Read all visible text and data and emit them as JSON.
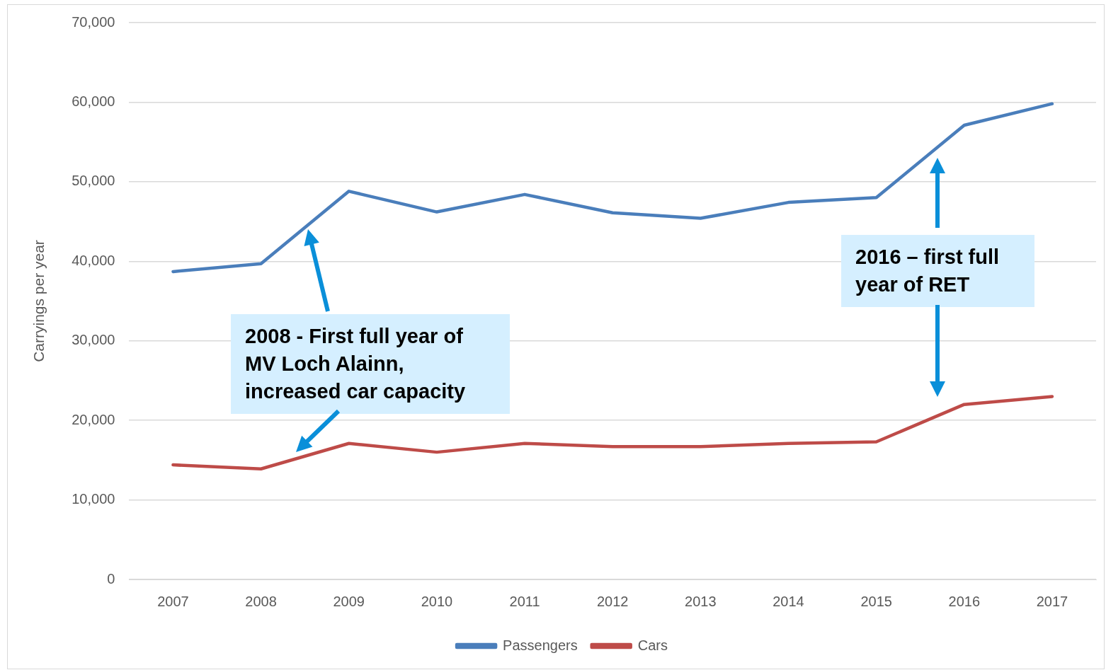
{
  "chart_data": {
    "type": "line",
    "ylabel": "Carryings per year",
    "categories": [
      "2007",
      "2008",
      "2009",
      "2010",
      "2011",
      "2012",
      "2013",
      "2014",
      "2015",
      "2016",
      "2017"
    ],
    "series": [
      {
        "name": "Passengers",
        "color": "#4a7ebb",
        "values": [
          38700,
          39700,
          48800,
          46200,
          48400,
          46100,
          45400,
          47400,
          48000,
          57100,
          59800
        ]
      },
      {
        "name": "Cars",
        "color": "#be4b48",
        "values": [
          14400,
          13900,
          17100,
          16000,
          17100,
          16700,
          16700,
          17100,
          17300,
          22000,
          23000
        ]
      }
    ],
    "ylim": [
      0,
      70000
    ],
    "yticks": [
      0,
      {
        "value": 10000,
        "label": "10,000"
      },
      {
        "value": 20000,
        "label": "20,000"
      },
      {
        "value": 30000,
        "label": "30,000"
      },
      {
        "value": 40000,
        "label": "40,000"
      },
      {
        "value": 50000,
        "label": "50,000"
      },
      {
        "value": 60000,
        "label": "60,000"
      },
      {
        "value": 70000,
        "label": "70,000"
      }
    ],
    "grid": "y",
    "legend": "bottom",
    "marker": "none",
    "line_style": "solid",
    "annotations": [
      "2008 - First full year of MV Loch Alainn, increased car capacity",
      "2016 – first full year of RET"
    ]
  }
}
